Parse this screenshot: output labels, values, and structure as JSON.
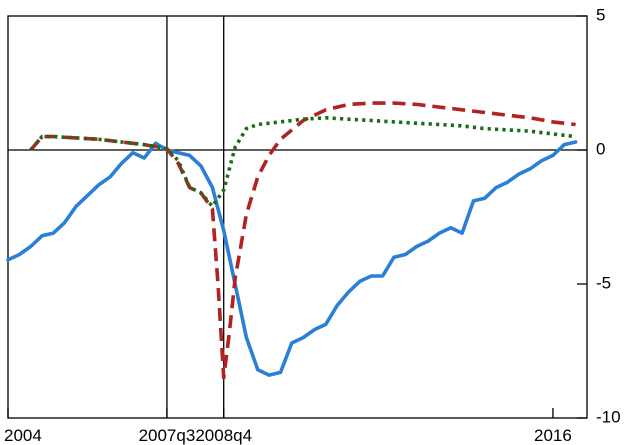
{
  "chart_data": {
    "type": "line",
    "title": "",
    "xlabel": "",
    "ylabel": "",
    "xlim": [
      2004.0,
      2016.75
    ],
    "ylim": [
      -10,
      5
    ],
    "y_axis_side": "right",
    "grid": false,
    "x_ticks": [
      {
        "x": 2004.0,
        "label": "2004"
      },
      {
        "x": 2007.5,
        "label": "2007q3"
      },
      {
        "x": 2008.75,
        "label": "2008q4"
      },
      {
        "x": 2016.0,
        "label": "2016"
      }
    ],
    "y_ticks": [
      {
        "y": 5,
        "label": "5"
      },
      {
        "y": 0,
        "label": "0"
      },
      {
        "y": -5,
        "label": "-5"
      },
      {
        "y": -10,
        "label": "-10"
      }
    ],
    "reference_lines": {
      "horizontal_y": 0,
      "vertical_x": [
        2007.5,
        2008.75
      ]
    },
    "series": [
      {
        "style": "solid",
        "color": "#2b7fd6",
        "x": [
          2004.0,
          2004.25,
          2004.5,
          2004.75,
          2005.0,
          2005.25,
          2005.5,
          2005.75,
          2006.0,
          2006.25,
          2006.5,
          2006.75,
          2007.0,
          2007.25,
          2007.5,
          2007.75,
          2008.0,
          2008.25,
          2008.5,
          2008.75,
          2009.0,
          2009.25,
          2009.5,
          2009.75,
          2010.0,
          2010.25,
          2010.5,
          2010.75,
          2011.0,
          2011.25,
          2011.5,
          2011.75,
          2012.0,
          2012.25,
          2012.5,
          2012.75,
          2013.0,
          2013.25,
          2013.5,
          2013.75,
          2014.0,
          2014.25,
          2014.5,
          2014.75,
          2015.0,
          2015.25,
          2015.5,
          2015.75,
          2016.0,
          2016.25,
          2016.5
        ],
        "y": [
          -4.1,
          -3.9,
          -3.6,
          -3.2,
          -3.1,
          -2.7,
          -2.1,
          -1.7,
          -1.3,
          -1.0,
          -0.5,
          -0.1,
          -0.3,
          0.25,
          0.0,
          -0.1,
          -0.2,
          -0.6,
          -1.4,
          -3.0,
          -5.0,
          -7.0,
          -8.2,
          -8.4,
          -8.3,
          -7.2,
          -7.0,
          -6.7,
          -6.5,
          -5.8,
          -5.3,
          -4.9,
          -4.7,
          -4.7,
          -4.0,
          -3.9,
          -3.6,
          -3.4,
          -3.1,
          -2.9,
          -3.1,
          -1.9,
          -1.8,
          -1.4,
          -1.2,
          -0.9,
          -0.7,
          -0.4,
          -0.2,
          0.2,
          0.3
        ]
      },
      {
        "style": "dashed",
        "color": "#b22222",
        "x": [
          2004.5,
          2004.75,
          2005.0,
          2005.5,
          2006.0,
          2006.5,
          2007.0,
          2007.5,
          2007.75,
          2008.0,
          2008.25,
          2008.5,
          2008.625,
          2008.75,
          2008.875,
          2009.0,
          2009.25,
          2009.5,
          2009.75,
          2010.0,
          2010.5,
          2011.0,
          2011.5,
          2012.0,
          2012.5,
          2013.0,
          2013.5,
          2014.0,
          2014.5,
          2015.0,
          2015.5,
          2016.0,
          2016.5
        ],
        "y": [
          0.0,
          0.5,
          0.5,
          0.45,
          0.4,
          0.3,
          0.2,
          0.05,
          -0.5,
          -1.4,
          -1.6,
          -2.2,
          -5.0,
          -8.5,
          -6.8,
          -4.8,
          -2.4,
          -1.0,
          -0.2,
          0.4,
          1.1,
          1.5,
          1.7,
          1.75,
          1.75,
          1.7,
          1.6,
          1.5,
          1.4,
          1.3,
          1.2,
          1.05,
          0.95
        ]
      },
      {
        "style": "dotted",
        "color": "#1a6b1a",
        "x": [
          2004.5,
          2004.75,
          2005.0,
          2005.5,
          2006.0,
          2006.5,
          2007.0,
          2007.5,
          2007.75,
          2008.0,
          2008.25,
          2008.5,
          2008.75,
          2009.0,
          2009.25,
          2009.5,
          2009.75,
          2010.0,
          2010.5,
          2011.0,
          2011.5,
          2012.0,
          2012.5,
          2013.0,
          2013.5,
          2014.0,
          2014.5,
          2015.0,
          2015.5,
          2016.0,
          2016.5
        ],
        "y": [
          0.0,
          0.5,
          0.5,
          0.45,
          0.4,
          0.3,
          0.2,
          0.05,
          -0.4,
          -1.4,
          -1.6,
          -2.1,
          -1.5,
          0.1,
          0.8,
          0.95,
          1.0,
          1.05,
          1.15,
          1.2,
          1.15,
          1.1,
          1.05,
          1.0,
          0.95,
          0.9,
          0.8,
          0.75,
          0.7,
          0.6,
          0.5
        ]
      }
    ]
  }
}
